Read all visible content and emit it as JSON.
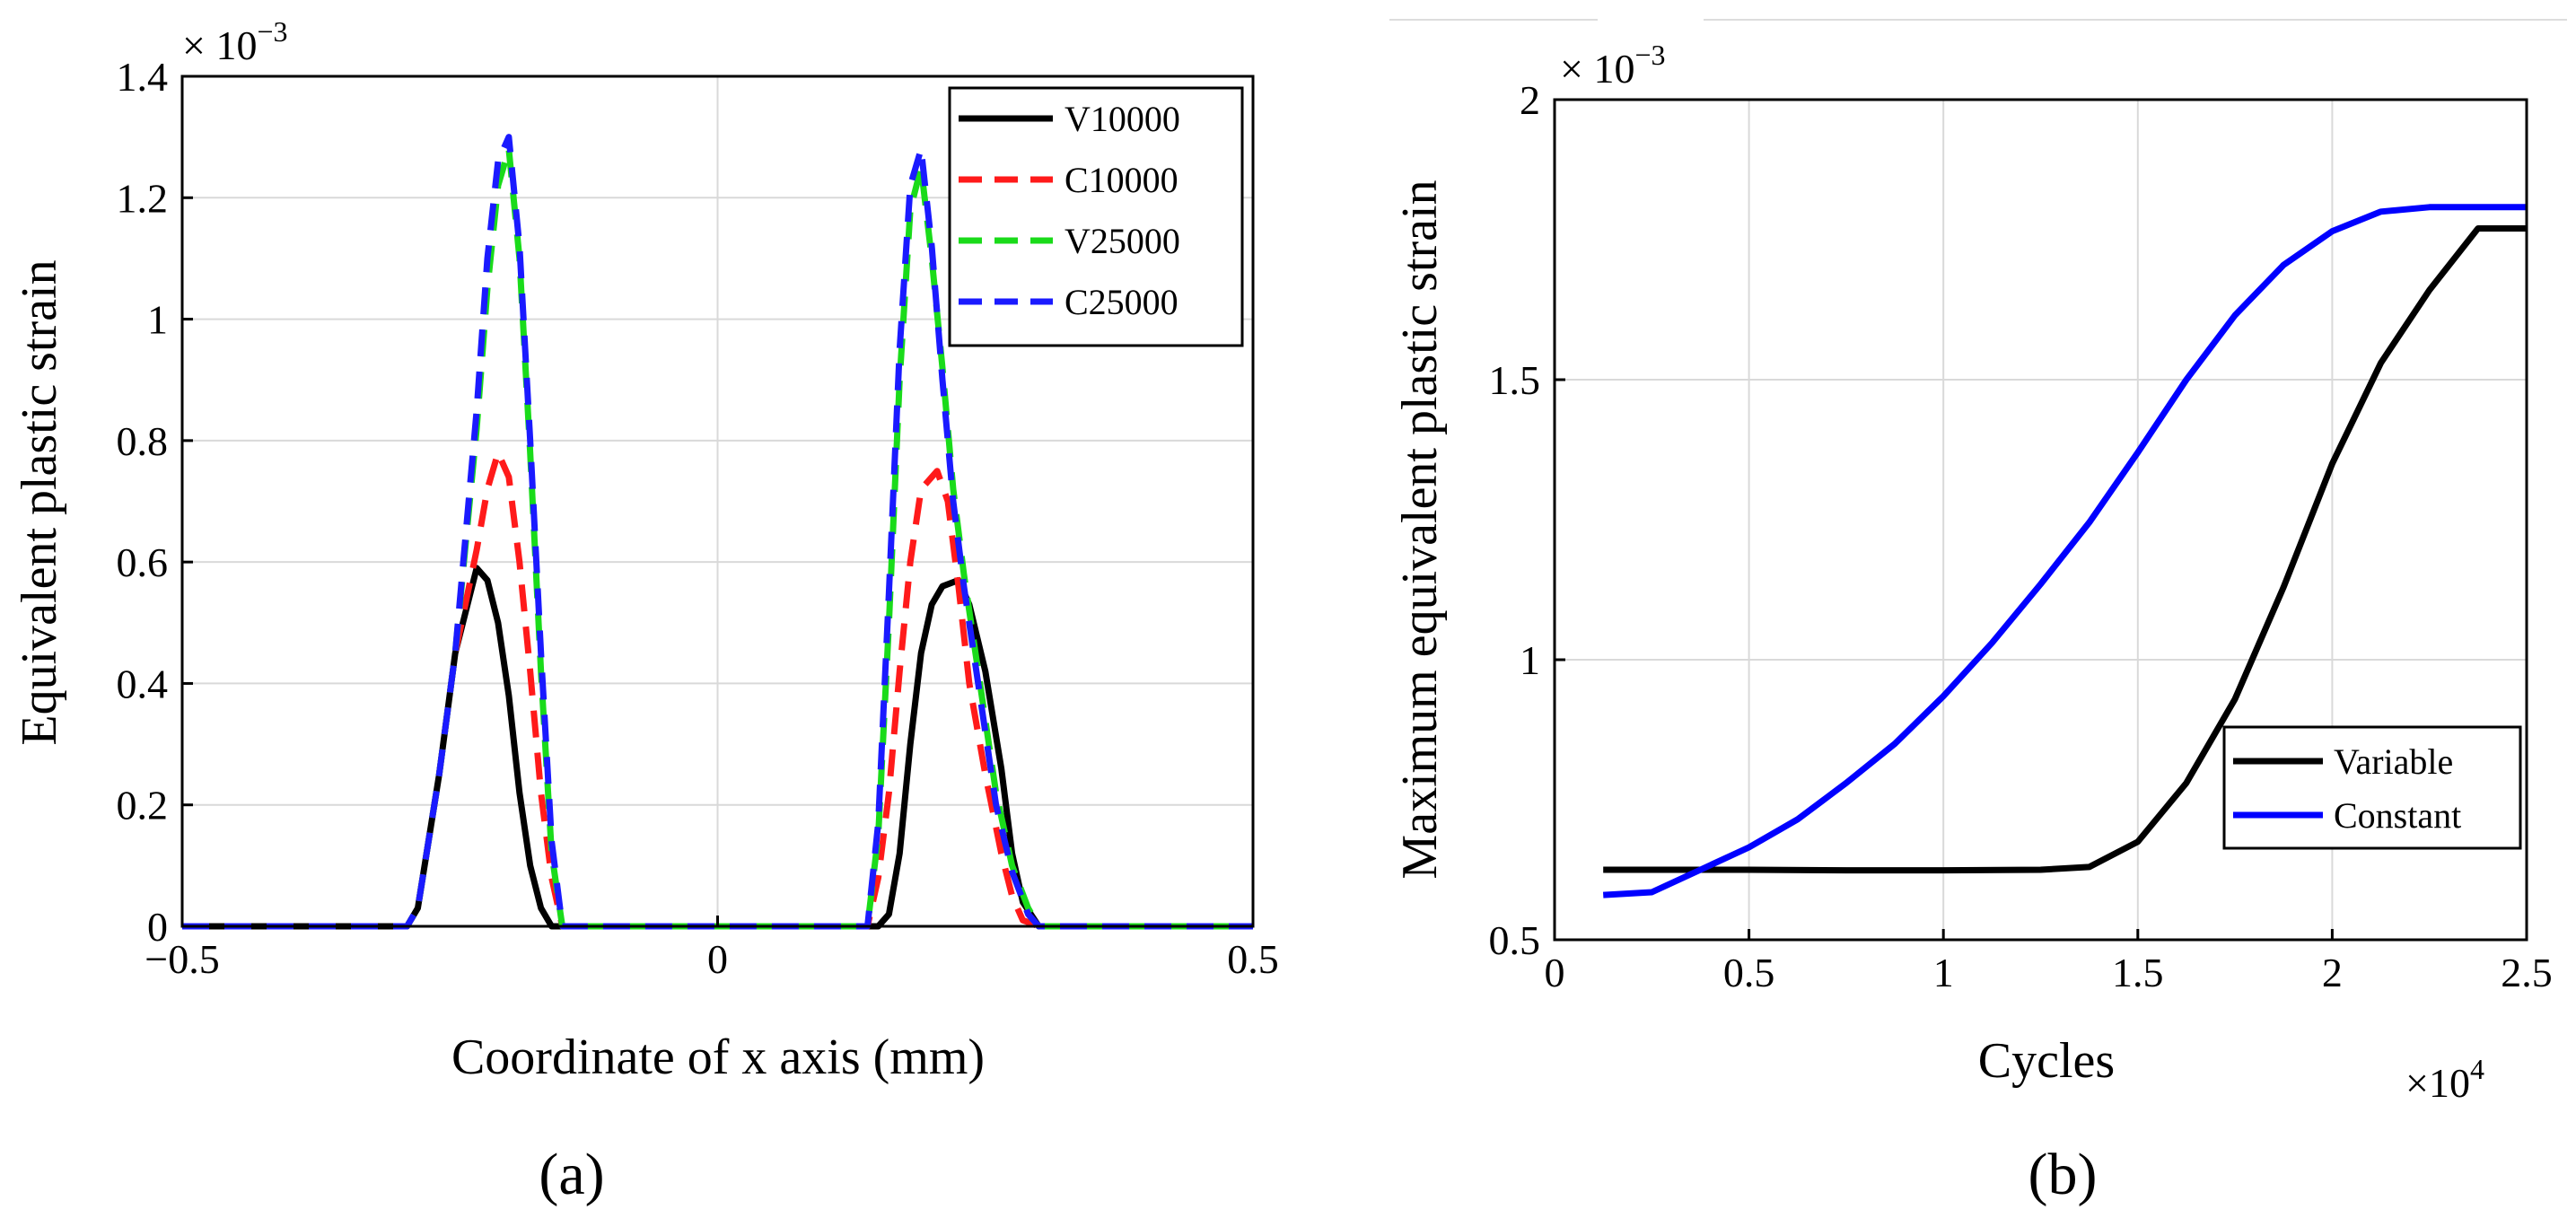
{
  "chart_data": [
    {
      "panel_label": "(a)",
      "type": "line",
      "title": "",
      "xlabel": "Coordinate of x axis (mm)",
      "ylabel": "Equivalent plastic strain",
      "y_multiplier": "× 10",
      "y_multiplier_exp": "−3",
      "xlim": [
        -0.5,
        0.5
      ],
      "ylim": [
        0,
        1.4
      ],
      "grid": true,
      "legend_position": "top-right",
      "x_ticks": [
        -0.5,
        0,
        0.5
      ],
      "x_tick_labels": [
        "−0.5",
        "0",
        "0.5"
      ],
      "y_ticks": [
        0,
        0.2,
        0.4,
        0.6,
        0.8,
        1,
        1.2,
        1.4
      ],
      "y_tick_labels": [
        "0",
        "0.2",
        "0.4",
        "0.6",
        "0.8",
        "1",
        "1.2",
        "1.4"
      ],
      "series": [
        {
          "name": "V10000",
          "color": "#000000",
          "dash": "solid",
          "x": [
            -0.5,
            -0.29,
            -0.28,
            -0.26,
            -0.245,
            -0.225,
            -0.215,
            -0.205,
            -0.195,
            -0.185,
            -0.175,
            -0.165,
            -0.155,
            0.15,
            0.16,
            0.17,
            0.18,
            0.19,
            0.2,
            0.21,
            0.225,
            0.235,
            0.25,
            0.265,
            0.275,
            0.285,
            0.3,
            0.5
          ],
          "values": [
            0,
            0,
            0.03,
            0.25,
            0.45,
            0.59,
            0.57,
            0.5,
            0.38,
            0.22,
            0.1,
            0.03,
            0,
            0,
            0.02,
            0.12,
            0.3,
            0.45,
            0.53,
            0.56,
            0.57,
            0.53,
            0.42,
            0.26,
            0.12,
            0.04,
            0,
            0
          ]
        },
        {
          "name": "C10000",
          "color": "#ff1a1a",
          "dash": "dashed",
          "x": [
            -0.5,
            -0.29,
            -0.28,
            -0.26,
            -0.245,
            -0.225,
            -0.215,
            -0.205,
            -0.195,
            -0.185,
            -0.175,
            -0.165,
            -0.155,
            -0.145,
            0.14,
            0.15,
            0.16,
            0.17,
            0.18,
            0.19,
            0.205,
            0.215,
            0.225,
            0.235,
            0.25,
            0.265,
            0.275,
            0.285,
            0.3,
            0.5
          ],
          "values": [
            0,
            0,
            0.03,
            0.25,
            0.45,
            0.62,
            0.72,
            0.78,
            0.74,
            0.6,
            0.42,
            0.22,
            0.08,
            0,
            0,
            0.08,
            0.22,
            0.42,
            0.6,
            0.72,
            0.75,
            0.7,
            0.56,
            0.4,
            0.25,
            0.12,
            0.05,
            0.01,
            0,
            0
          ]
        },
        {
          "name": "V25000",
          "color": "#1adb1a",
          "dash": "dashed",
          "x": [
            -0.5,
            -0.29,
            -0.28,
            -0.26,
            -0.245,
            -0.225,
            -0.215,
            -0.205,
            -0.195,
            -0.185,
            -0.175,
            -0.165,
            -0.155,
            -0.145,
            0.14,
            0.15,
            0.16,
            0.17,
            0.18,
            0.19,
            0.2,
            0.21,
            0.22,
            0.23,
            0.245,
            0.26,
            0.275,
            0.29,
            0.3,
            0.5
          ],
          "values": [
            0,
            0,
            0.03,
            0.25,
            0.45,
            0.82,
            1.05,
            1.22,
            1.28,
            1.1,
            0.78,
            0.42,
            0.12,
            0,
            0,
            0.15,
            0.5,
            0.9,
            1.18,
            1.25,
            1.1,
            0.92,
            0.72,
            0.58,
            0.4,
            0.22,
            0.1,
            0.03,
            0,
            0
          ]
        },
        {
          "name": "C25000",
          "color": "#1a1aff",
          "dash": "dashed",
          "x": [
            -0.5,
            -0.29,
            -0.28,
            -0.26,
            -0.245,
            -0.225,
            -0.215,
            -0.205,
            -0.195,
            -0.185,
            -0.175,
            -0.165,
            -0.155,
            -0.145,
            0.14,
            0.15,
            0.16,
            0.17,
            0.18,
            0.19,
            0.2,
            0.21,
            0.22,
            0.23,
            0.245,
            0.26,
            0.275,
            0.29,
            0.3,
            0.5
          ],
          "values": [
            0,
            0,
            0.03,
            0.25,
            0.45,
            0.85,
            1.1,
            1.26,
            1.3,
            1.12,
            0.8,
            0.45,
            0.14,
            0,
            0,
            0.17,
            0.55,
            0.95,
            1.22,
            1.28,
            1.12,
            0.9,
            0.7,
            0.56,
            0.38,
            0.2,
            0.09,
            0.02,
            0,
            0
          ]
        }
      ]
    },
    {
      "panel_label": "(b)",
      "type": "line",
      "title": "",
      "xlabel": "Cycles",
      "ylabel": "Maximum equivalent plastic strain",
      "x_multiplier": "×10",
      "x_multiplier_exp": "4",
      "y_multiplier": "× 10",
      "y_multiplier_exp": "−3",
      "xlim": [
        0,
        2.5
      ],
      "ylim": [
        0.5,
        2
      ],
      "grid": true,
      "legend_position": "bottom-right",
      "x_ticks": [
        0,
        0.5,
        1,
        1.5,
        2,
        2.5
      ],
      "x_tick_labels": [
        "0",
        "0.5",
        "1",
        "1.5",
        "2",
        "2.5"
      ],
      "y_ticks": [
        0.5,
        1,
        1.5,
        2
      ],
      "y_tick_labels": [
        "0.5",
        "1",
        "1.5",
        "2"
      ],
      "series": [
        {
          "name": "Variable",
          "color": "#000000",
          "x": [
            0.125,
            0.25,
            0.5,
            0.75,
            1.0,
            1.25,
            1.375,
            1.5,
            1.625,
            1.75,
            1.875,
            2.0,
            2.125,
            2.25,
            2.375,
            2.5
          ],
          "values": [
            0.625,
            0.625,
            0.625,
            0.624,
            0.624,
            0.625,
            0.63,
            0.675,
            0.78,
            0.93,
            1.13,
            1.35,
            1.53,
            1.66,
            1.77,
            1.77
          ]
        },
        {
          "name": "Constant",
          "color": "#0000ff",
          "x": [
            0.125,
            0.25,
            0.375,
            0.5,
            0.625,
            0.75,
            0.875,
            1.0,
            1.125,
            1.25,
            1.375,
            1.5,
            1.625,
            1.75,
            1.875,
            2.0,
            2.125,
            2.25,
            2.375,
            2.5
          ],
          "values": [
            0.58,
            0.585,
            0.625,
            0.665,
            0.715,
            0.78,
            0.85,
            0.935,
            1.03,
            1.135,
            1.245,
            1.37,
            1.5,
            1.615,
            1.705,
            1.765,
            1.8,
            1.808,
            1.808,
            1.808
          ]
        }
      ]
    }
  ]
}
